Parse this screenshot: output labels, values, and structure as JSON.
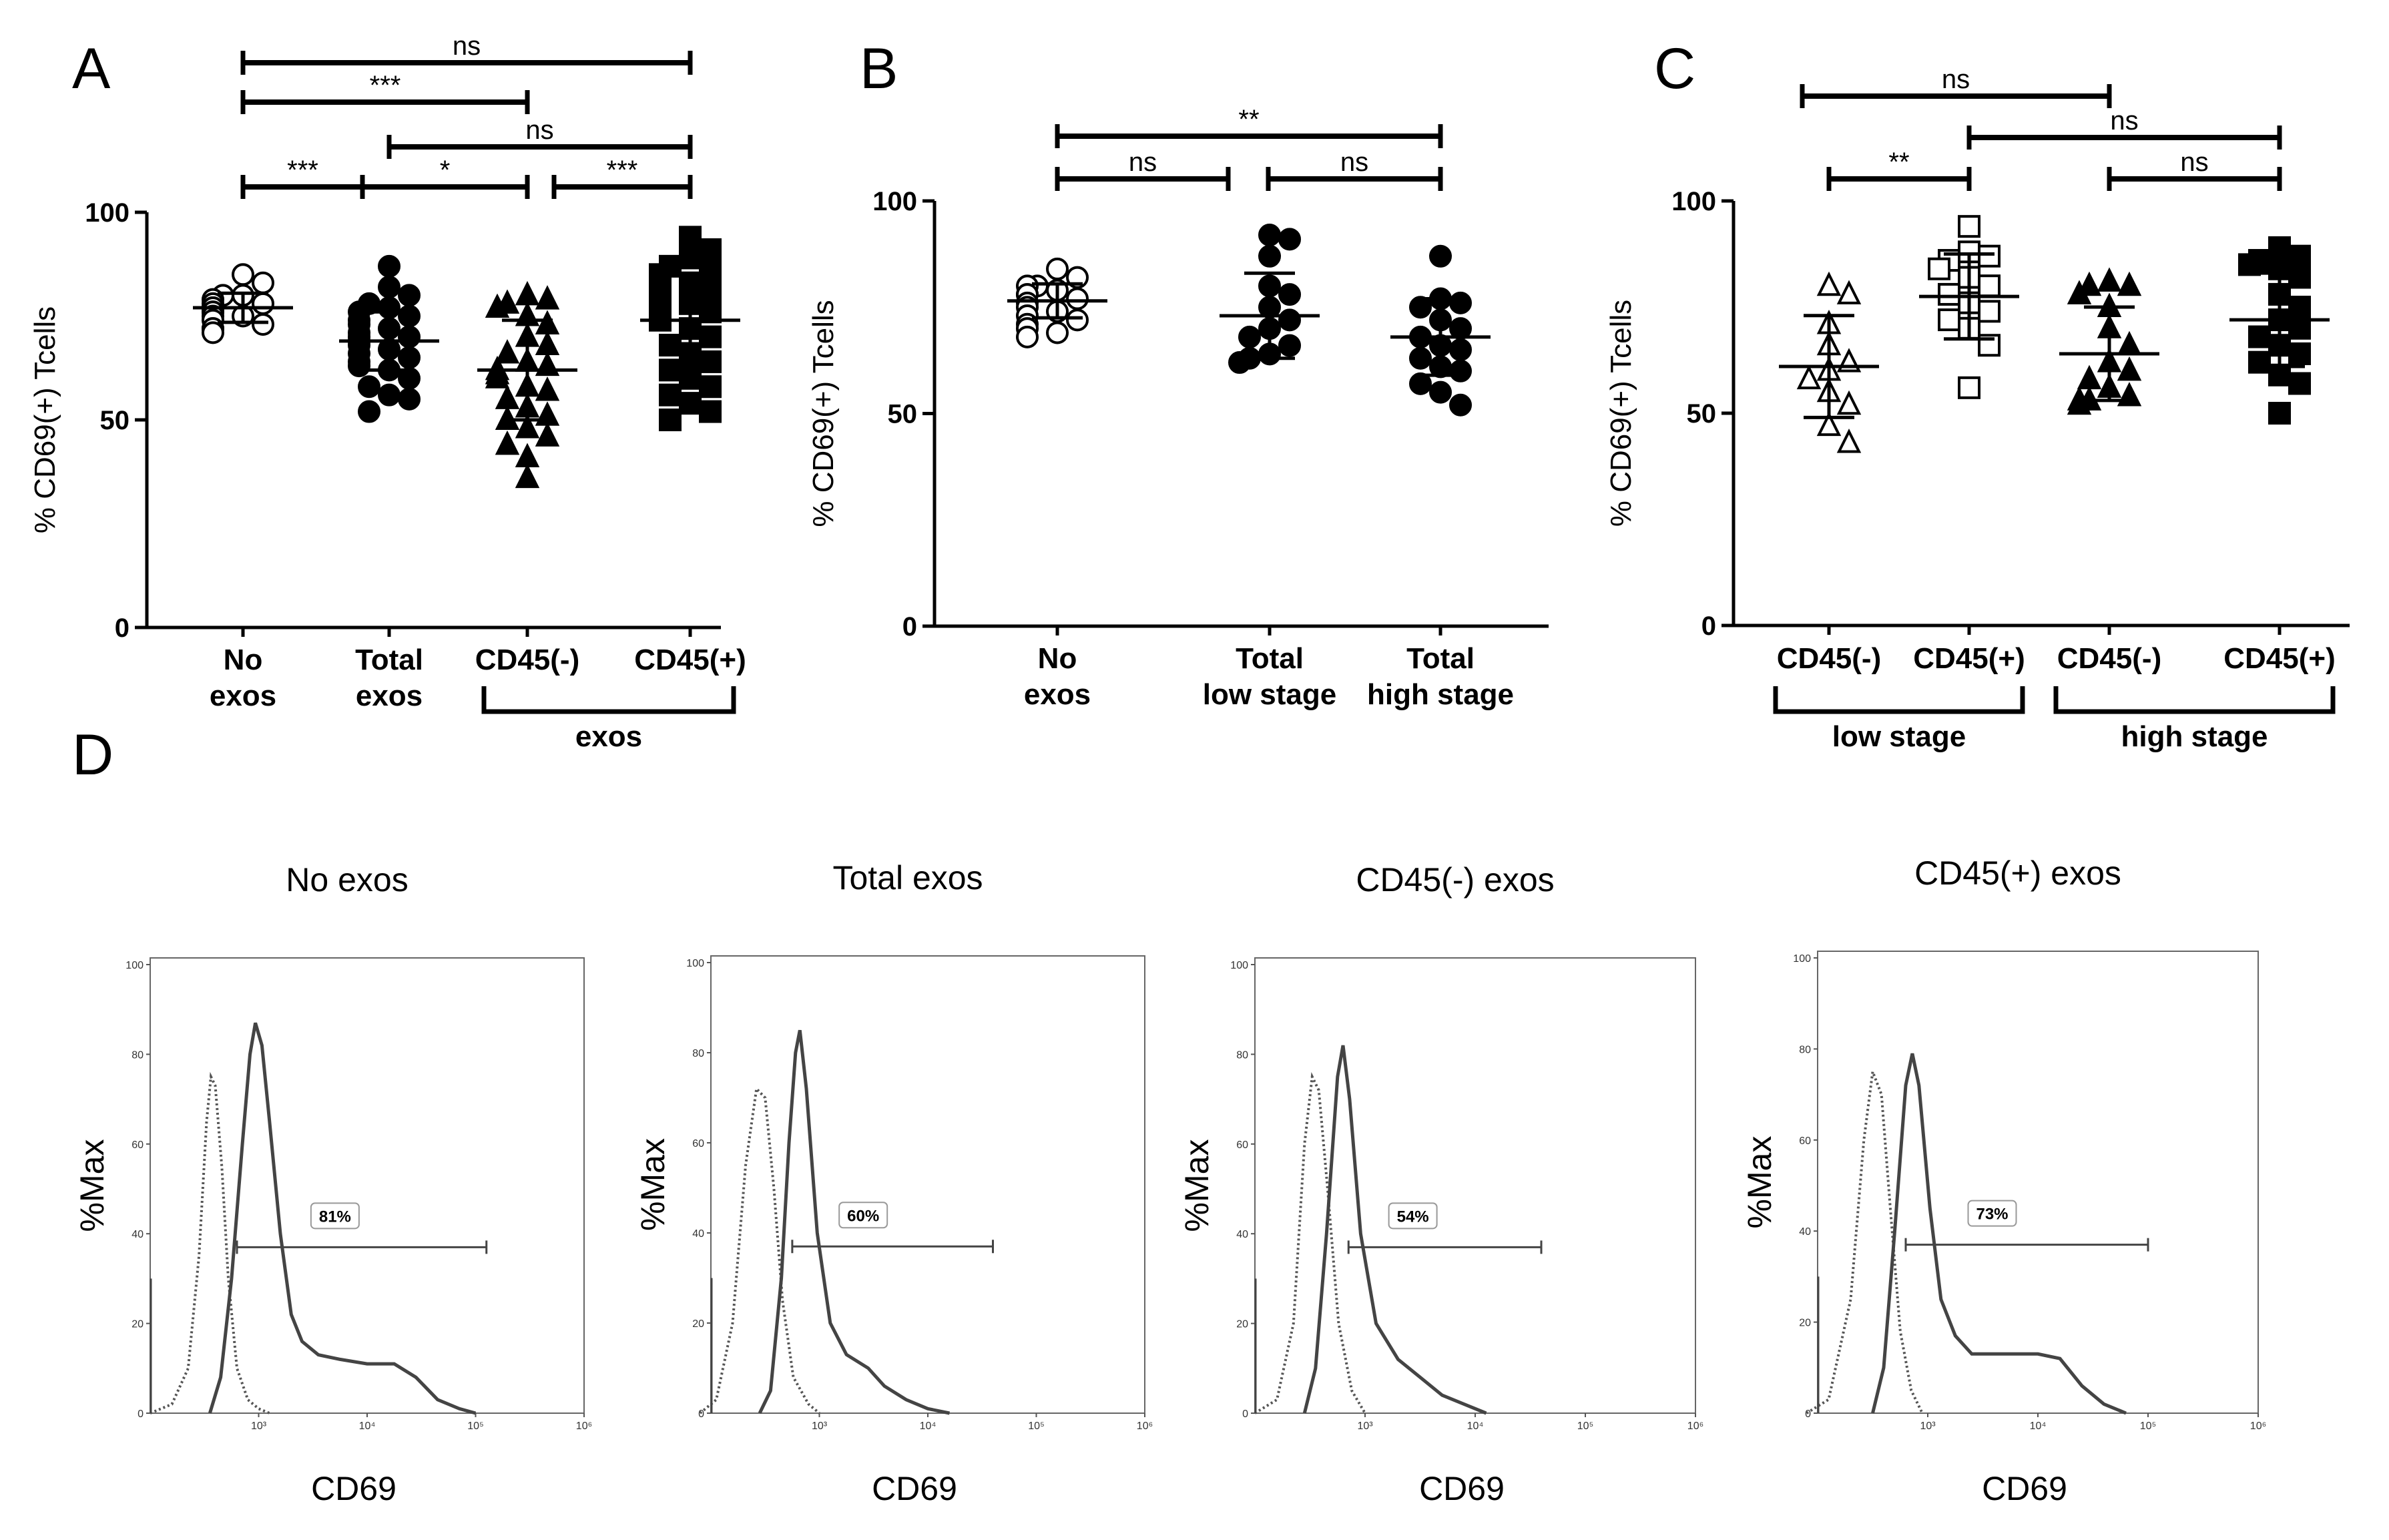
{
  "figure": {
    "panels": [
      {
        "id": "A",
        "letter": "A"
      },
      {
        "id": "B",
        "letter": "B"
      },
      {
        "id": "C",
        "letter": "C"
      },
      {
        "id": "D",
        "letter": "D"
      }
    ]
  },
  "chart_data": [
    {
      "panel": "A",
      "type": "scatter",
      "ylabel": "% CD69(+) Tcells",
      "ylim": [
        0,
        100
      ],
      "yticks": [
        0,
        50,
        100
      ],
      "categories": [
        {
          "label": [
            "No",
            "exos"
          ],
          "marker": "circle-open"
        },
        {
          "label": [
            "Total",
            "exos"
          ],
          "marker": "circle-filled"
        },
        {
          "label": [
            "CD45(-)"
          ],
          "marker": "triangle-filled"
        },
        {
          "label": [
            "CD45(+)"
          ],
          "marker": "square-filled"
        }
      ],
      "group_brackets": [
        {
          "from": 2,
          "to": 3,
          "label": "exos"
        }
      ],
      "series": [
        {
          "name": "No exos",
          "mean": 77,
          "sd": 3.5,
          "values": [
            85,
            83,
            80,
            80,
            79,
            78,
            78,
            77,
            77,
            76,
            76,
            75,
            75,
            74,
            73,
            72,
            72,
            71
          ]
        },
        {
          "name": "Total exos",
          "mean": 69,
          "sd": 7,
          "values": [
            87,
            82,
            80,
            78,
            77,
            76,
            75,
            74,
            73,
            72,
            71,
            70,
            70,
            69,
            68,
            67,
            66,
            65,
            64,
            63,
            62,
            60,
            58,
            56,
            55,
            52
          ]
        },
        {
          "name": "CD45(-)",
          "mean": 62,
          "sd": 12,
          "values": [
            80,
            79,
            78,
            77,
            75,
            73,
            70,
            68,
            66,
            64,
            63,
            62,
            61,
            60,
            58,
            57,
            55,
            53,
            51,
            50,
            48,
            46,
            44,
            41,
            36
          ]
        },
        {
          "name": "CD45(+)",
          "mean": 74,
          "sd": 11,
          "values": [
            94,
            91,
            89,
            87,
            86,
            85,
            83,
            82,
            81,
            80,
            79,
            78,
            77,
            76,
            75,
            74,
            72,
            70,
            68,
            66,
            64,
            62,
            60,
            58,
            56,
            54,
            52,
            50
          ]
        }
      ],
      "comparisons": [
        {
          "from": 0,
          "to": 3,
          "label": "ns"
        },
        {
          "from": 0,
          "to": 2,
          "label": "***"
        },
        {
          "from": 1,
          "to": 3,
          "label": "ns"
        },
        {
          "from": 0,
          "to": 1,
          "label": "***"
        },
        {
          "from": 1,
          "to": 2,
          "label": "*"
        },
        {
          "from": 2,
          "to": 3,
          "label": "***"
        }
      ]
    },
    {
      "panel": "B",
      "type": "scatter",
      "ylabel": "% CD69(+) Tcells",
      "ylim": [
        0,
        100
      ],
      "yticks": [
        0,
        50,
        100
      ],
      "categories": [
        {
          "label": [
            "No",
            "exos"
          ],
          "marker": "circle-open"
        },
        {
          "label": [
            "Total",
            "low stage"
          ],
          "marker": "circle-filled"
        },
        {
          "label": [
            "Total",
            "high stage"
          ],
          "marker": "circle-filled"
        }
      ],
      "group_brackets": [],
      "series": [
        {
          "name": "No exos",
          "mean": 76.5,
          "sd": 4,
          "values": [
            84,
            82,
            80,
            80,
            79,
            78,
            78,
            77,
            76,
            75,
            74,
            73,
            72,
            71,
            70,
            69,
            68
          ]
        },
        {
          "name": "Total low stage",
          "mean": 73,
          "sd": 10,
          "values": [
            92,
            91,
            87,
            80,
            78,
            75,
            72,
            70,
            68,
            66,
            64,
            63,
            62
          ]
        },
        {
          "name": "Total high stage",
          "mean": 68,
          "sd": 9,
          "values": [
            87,
            77,
            76,
            75,
            72,
            70,
            68,
            66,
            65,
            63,
            61,
            60,
            57,
            55,
            52
          ]
        }
      ],
      "comparisons": [
        {
          "from": 0,
          "to": 2,
          "label": "**"
        },
        {
          "from": 0,
          "to": 1,
          "label": "ns"
        },
        {
          "from": 1,
          "to": 2,
          "label": "ns"
        }
      ]
    },
    {
      "panel": "C",
      "type": "scatter",
      "ylabel": "% CD69(+) Tcells",
      "ylim": [
        0,
        100
      ],
      "yticks": [
        0,
        50,
        100
      ],
      "categories": [
        {
          "label": [
            "CD45(-)"
          ],
          "marker": "triangle-open"
        },
        {
          "label": [
            "CD45(+)"
          ],
          "marker": "square-open"
        },
        {
          "label": [
            "CD45(-)"
          ],
          "marker": "triangle-filled"
        },
        {
          "label": [
            "CD45(+)"
          ],
          "marker": "square-filled"
        }
      ],
      "group_brackets": [
        {
          "from": 0,
          "to": 1,
          "label": "low stage"
        },
        {
          "from": 2,
          "to": 3,
          "label": "high stage"
        }
      ],
      "series": [
        {
          "name": "CD45(-) low stage",
          "mean": 61,
          "sd": 12,
          "values": [
            80,
            78,
            71,
            66,
            62,
            60,
            58,
            55,
            52,
            47,
            43
          ]
        },
        {
          "name": "CD45(+) low stage",
          "mean": 77.5,
          "sd": 10,
          "values": [
            94,
            88,
            87,
            86,
            84,
            82,
            80,
            78,
            76,
            74,
            72,
            70,
            66,
            56
          ]
        },
        {
          "name": "CD45(-) high stage",
          "mean": 64,
          "sd": 11,
          "values": [
            81,
            80,
            80,
            78,
            75,
            70,
            66,
            62,
            60,
            58,
            56,
            54,
            53,
            53,
            52
          ]
        },
        {
          "name": "CD45(+) high stage",
          "mean": 72,
          "sd": 11,
          "values": [
            89,
            87,
            86,
            85,
            84,
            82,
            78,
            75,
            72,
            70,
            68,
            66,
            64,
            62,
            59,
            57,
            50
          ]
        }
      ],
      "comparisons": [
        {
          "from": 0,
          "to": 2,
          "label": "ns"
        },
        {
          "from": 1,
          "to": 3,
          "label": "ns"
        },
        {
          "from": 0,
          "to": 1,
          "label": "**"
        },
        {
          "from": 2,
          "to": 3,
          "label": "ns"
        }
      ]
    },
    {
      "panel": "D",
      "type": "line",
      "subtype": "flow-cytometry-histogram",
      "ylabel": "%Max",
      "xlabel": "CD69",
      "ylim": [
        0,
        100
      ],
      "yticks": [
        0,
        20,
        40,
        60,
        80,
        100
      ],
      "xscale": "log10",
      "xlim": [
        100,
        1000000
      ],
      "xticks": [
        {
          "exp": 3,
          "label": "10³"
        },
        {
          "exp": 4,
          "label": "10⁴"
        },
        {
          "exp": 5,
          "label": "10⁵"
        },
        {
          "exp": 6,
          "label": "10⁶"
        }
      ],
      "histograms": [
        {
          "title": "No exos",
          "gate_label": "81%",
          "gate_range": [
            2.8,
            5.1
          ],
          "dotted": [
            [
              2.0,
              0
            ],
            [
              2.2,
              2
            ],
            [
              2.35,
              10
            ],
            [
              2.45,
              35
            ],
            [
              2.52,
              65
            ],
            [
              2.56,
              75
            ],
            [
              2.6,
              73
            ],
            [
              2.66,
              55
            ],
            [
              2.72,
              30
            ],
            [
              2.8,
              10
            ],
            [
              2.9,
              3
            ],
            [
              3.0,
              1
            ],
            [
              3.1,
              0
            ]
          ],
          "solid": [
            [
              2.55,
              0
            ],
            [
              2.65,
              8
            ],
            [
              2.75,
              30
            ],
            [
              2.85,
              60
            ],
            [
              2.92,
              80
            ],
            [
              2.97,
              87
            ],
            [
              3.03,
              82
            ],
            [
              3.1,
              65
            ],
            [
              3.2,
              40
            ],
            [
              3.3,
              22
            ],
            [
              3.4,
              16
            ],
            [
              3.55,
              13
            ],
            [
              3.75,
              12
            ],
            [
              4.0,
              11
            ],
            [
              4.25,
              11
            ],
            [
              4.45,
              8
            ],
            [
              4.65,
              3
            ],
            [
              4.85,
              1
            ],
            [
              5.0,
              0
            ]
          ]
        },
        {
          "title": "Total exos",
          "gate_label": "60%",
          "gate_range": [
            2.75,
            4.6
          ],
          "dotted": [
            [
              1.9,
              0
            ],
            [
              2.05,
              3
            ],
            [
              2.2,
              20
            ],
            [
              2.32,
              55
            ],
            [
              2.42,
              72
            ],
            [
              2.5,
              70
            ],
            [
              2.58,
              50
            ],
            [
              2.66,
              25
            ],
            [
              2.76,
              8
            ],
            [
              2.9,
              2
            ],
            [
              3.0,
              0
            ]
          ],
          "solid": [
            [
              2.45,
              0
            ],
            [
              2.55,
              5
            ],
            [
              2.65,
              30
            ],
            [
              2.72,
              60
            ],
            [
              2.78,
              80
            ],
            [
              2.82,
              85
            ],
            [
              2.88,
              72
            ],
            [
              2.98,
              40
            ],
            [
              3.1,
              20
            ],
            [
              3.25,
              13
            ],
            [
              3.45,
              10
            ],
            [
              3.6,
              6
            ],
            [
              3.8,
              3
            ],
            [
              4.0,
              1
            ],
            [
              4.2,
              0
            ]
          ]
        },
        {
          "title": "CD45(-) exos",
          "gate_label": "54%",
          "gate_range": [
            2.85,
            4.6
          ],
          "dotted": [
            [
              2.0,
              0
            ],
            [
              2.2,
              3
            ],
            [
              2.35,
              20
            ],
            [
              2.45,
              60
            ],
            [
              2.52,
              75
            ],
            [
              2.58,
              72
            ],
            [
              2.66,
              50
            ],
            [
              2.76,
              20
            ],
            [
              2.88,
              5
            ],
            [
              3.0,
              0
            ]
          ],
          "solid": [
            [
              2.45,
              0
            ],
            [
              2.55,
              10
            ],
            [
              2.65,
              40
            ],
            [
              2.75,
              75
            ],
            [
              2.8,
              82
            ],
            [
              2.86,
              70
            ],
            [
              2.96,
              40
            ],
            [
              3.1,
              20
            ],
            [
              3.3,
              12
            ],
            [
              3.5,
              8
            ],
            [
              3.7,
              4
            ],
            [
              3.9,
              2
            ],
            [
              4.1,
              0
            ]
          ]
        },
        {
          "title": "CD45(+) exos",
          "gate_label": "73%",
          "gate_range": [
            2.8,
            5.0
          ],
          "dotted": [
            [
              1.9,
              0
            ],
            [
              2.1,
              3
            ],
            [
              2.3,
              25
            ],
            [
              2.42,
              60
            ],
            [
              2.5,
              75
            ],
            [
              2.58,
              70
            ],
            [
              2.66,
              45
            ],
            [
              2.75,
              18
            ],
            [
              2.85,
              5
            ],
            [
              2.95,
              0
            ]
          ],
          "solid": [
            [
              2.5,
              0
            ],
            [
              2.6,
              10
            ],
            [
              2.7,
              40
            ],
            [
              2.8,
              72
            ],
            [
              2.86,
              79
            ],
            [
              2.92,
              72
            ],
            [
              3.02,
              45
            ],
            [
              3.12,
              25
            ],
            [
              3.25,
              17
            ],
            [
              3.4,
              13
            ],
            [
              3.6,
              13
            ],
            [
              3.8,
              13
            ],
            [
              4.0,
              13
            ],
            [
              4.2,
              12
            ],
            [
              4.4,
              6
            ],
            [
              4.6,
              2
            ],
            [
              4.8,
              0
            ]
          ]
        }
      ]
    }
  ]
}
